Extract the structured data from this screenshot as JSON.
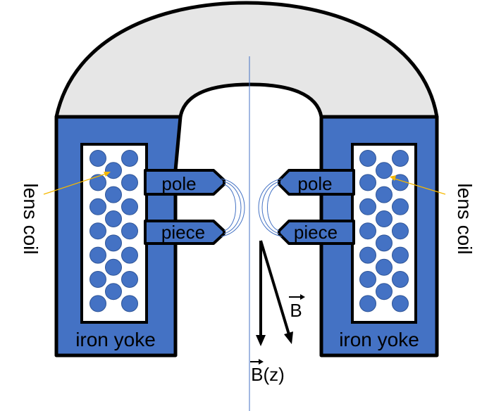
{
  "labels": {
    "lens_coil_left": "lens coil",
    "lens_coil_right": "lens coil",
    "pole_left": "pole",
    "piece_left": "piece",
    "pole_right": "pole",
    "piece_right": "piece",
    "iron_yoke_left": "iron yoke",
    "iron_yoke_right": "iron yoke",
    "b_vector": "B",
    "bz_vector": "B(z)"
  },
  "colors": {
    "yoke_blue": "#4472c4",
    "cap_gray": "#e6e6e6",
    "coil_fill": "#ffffff",
    "coil_turn": "#4472c4",
    "pointer": "#f5b800",
    "axis": "#4472c4",
    "outline": "#000000"
  }
}
